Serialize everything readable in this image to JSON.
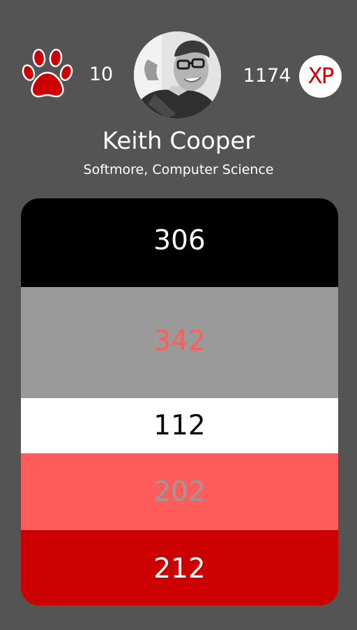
{
  "profile": {
    "paw_count": "10",
    "xp_count": "1174",
    "xp_badge_label": "XP",
    "name": "Keith Cooper",
    "subtitle": "Softmore, Computer Science"
  },
  "icons": {
    "paw": "paw-print-icon",
    "avatar": "user-avatar"
  },
  "colors": {
    "background": "#545454",
    "accent_red": "#cc0000",
    "coral": "#ff5c5c",
    "gray": "#9a9a9a"
  },
  "score_bands": [
    {
      "value": "306",
      "background": "#000000",
      "text_color": "#ffffff"
    },
    {
      "value": "342",
      "background": "#9a9a9a",
      "text_color": "#ff5c5c"
    },
    {
      "value": "112",
      "background": "#ffffff",
      "text_color": "#000000"
    },
    {
      "value": "202",
      "background": "#ff5c5c",
      "text_color": "#9a9a9a"
    },
    {
      "value": "212",
      "background": "#cc0000",
      "text_color": "#ffffff"
    }
  ]
}
